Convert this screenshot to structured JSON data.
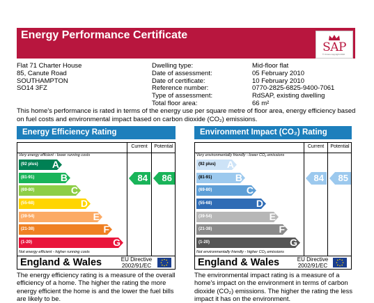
{
  "header": {
    "title": "Energy Performance Certificate",
    "logo_text": "SAP",
    "logo_small": "© Crown copyright 2010"
  },
  "address": [
    "Flat 71 Charter House",
    "85, Canute Road",
    "SOUTHAMPTON",
    "SO14 3FZ"
  ],
  "details": [
    {
      "label": "Dwelling type:",
      "value": "Mid-floor flat"
    },
    {
      "label": "Date of assessment:",
      "value": "05 February 2010"
    },
    {
      "label": "Date of certificate:",
      "value": "10 February 2010"
    },
    {
      "label": "Reference number:",
      "value": "0770-2825-6825-9400-7061"
    },
    {
      "label": "Type of assessment:",
      "value": "RdSAP, existing dwelling"
    },
    {
      "label": "Total floor area:",
      "value": "66 m²"
    }
  ],
  "intro": "This home's performance is rated in terms of the energy use per square metre of floor area, energy efficiency based on fuel costs and environmental impact based on carbon dioxide (CO₂) emissions.",
  "col_current": "Current",
  "col_potential": "Potential",
  "efficiency": {
    "title": "Energy Efficiency Rating",
    "top_note": "Very energy efficient - lower running costs",
    "bottom_note": "Not energy efficient - higher running costs",
    "bands": [
      {
        "range": "(92 plus)",
        "letter": "A",
        "color": "#008054"
      },
      {
        "range": "(81-91)",
        "letter": "B",
        "color": "#19b459"
      },
      {
        "range": "(69-80)",
        "letter": "C",
        "color": "#8dce46"
      },
      {
        "range": "(55-68)",
        "letter": "D",
        "color": "#ffd500"
      },
      {
        "range": "(39-54)",
        "letter": "E",
        "color": "#fcaa65"
      },
      {
        "range": "(21-38)",
        "letter": "F",
        "color": "#ef8023"
      },
      {
        "range": "(1-20)",
        "letter": "G",
        "color": "#e9153b"
      }
    ],
    "current": "84",
    "potential": "86",
    "current_color": "#19b459",
    "potential_color": "#19b459"
  },
  "environment": {
    "title": "Environment Impact (CO₂) Rating",
    "top_note": "Very environmentally friendly - lower CO₂ emissions",
    "bottom_note": "Not environmentally friendly - higher CO₂ emissions",
    "bands": [
      {
        "range": "(92 plus)",
        "letter": "A",
        "color": "#cde3f7"
      },
      {
        "range": "(81-91)",
        "letter": "B",
        "color": "#9cc9ee"
      },
      {
        "range": "(69-80)",
        "letter": "C",
        "color": "#5e9fd7"
      },
      {
        "range": "(55-68)",
        "letter": "D",
        "color": "#2f6cb5"
      },
      {
        "range": "(39-54)",
        "letter": "E",
        "color": "#b7b7b7"
      },
      {
        "range": "(21-38)",
        "letter": "F",
        "color": "#8a8a8a"
      },
      {
        "range": "(1-20)",
        "letter": "G",
        "color": "#555555"
      }
    ],
    "current": "84",
    "potential": "85",
    "current_color": "#9cc9ee",
    "potential_color": "#9cc9ee"
  },
  "footer": {
    "region": "England & Wales",
    "directive_1": "EU Directive",
    "directive_2": "2002/91/EC"
  },
  "efficiency_desc": "The energy efficiency rating is a measure of the overall efficiency of a home. The higher the rating the more energy efficient the home is and the lower the fuel bills are likely to be.",
  "environment_desc": "The environmental impact rating is a measure of a home's impact on the environment in terms of carbon dioxide (CO₂) emissions. The higher the rating the less impact it has on the environment."
}
